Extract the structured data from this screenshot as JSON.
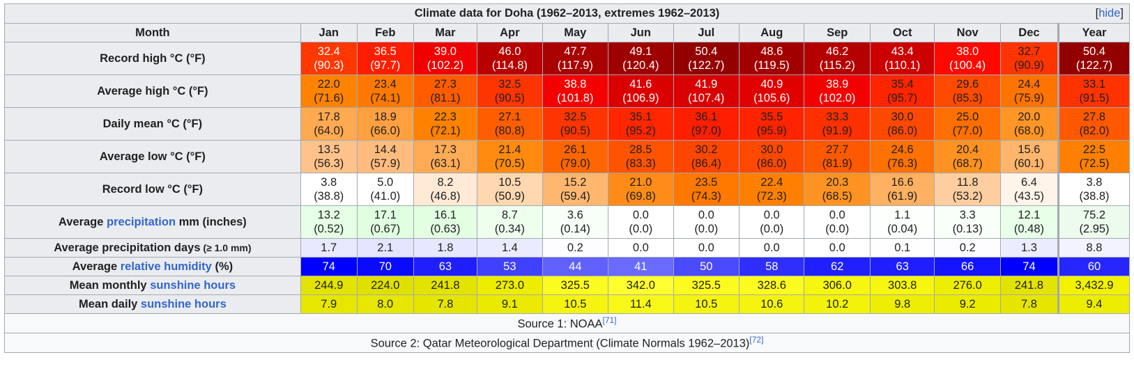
{
  "title": "Climate data for Doha (1962–2013, extremes 1962–2013)",
  "hide_label": "hide",
  "header": {
    "month_label": "Month",
    "months": [
      "Jan",
      "Feb",
      "Mar",
      "Apr",
      "May",
      "Jun",
      "Jul",
      "Aug",
      "Sep",
      "Oct",
      "Nov",
      "Dec"
    ],
    "year_label": "Year"
  },
  "rows": [
    {
      "label": "Record high °C (°F)",
      "link": null,
      "cells": [
        {
          "v": "32.4",
          "s": "(90.3)",
          "bg": "#ff3700",
          "fg": "#ffffff"
        },
        {
          "v": "36.5",
          "s": "(97.7)",
          "bg": "#ff1d00",
          "fg": "#ffffff"
        },
        {
          "v": "39.0",
          "s": "(102.2)",
          "bg": "#f00000",
          "fg": "#ffffff"
        },
        {
          "v": "46.0",
          "s": "(114.8)",
          "bg": "#b80000",
          "fg": "#ffffff"
        },
        {
          "v": "47.7",
          "s": "(117.9)",
          "bg": "#a90000",
          "fg": "#ffffff"
        },
        {
          "v": "49.1",
          "s": "(120.4)",
          "bg": "#9e0000",
          "fg": "#ffffff"
        },
        {
          "v": "50.4",
          "s": "(122.7)",
          "bg": "#930000",
          "fg": "#ffffff"
        },
        {
          "v": "48.6",
          "s": "(119.5)",
          "bg": "#a20000",
          "fg": "#ffffff"
        },
        {
          "v": "46.2",
          "s": "(115.2)",
          "bg": "#b50000",
          "fg": "#ffffff"
        },
        {
          "v": "43.4",
          "s": "(110.1)",
          "bg": "#cc0000",
          "fg": "#ffffff"
        },
        {
          "v": "38.0",
          "s": "(100.4)",
          "bg": "#ff0800",
          "fg": "#ffffff"
        },
        {
          "v": "32.7",
          "s": "(90.9)",
          "bg": "#ff3400",
          "fg": "#202122"
        }
      ],
      "year": {
        "v": "50.4",
        "s": "(122.7)",
        "bg": "#930000",
        "fg": "#ffffff"
      }
    },
    {
      "label": "Average high °C (°F)",
      "link": null,
      "cells": [
        {
          "v": "22.0",
          "s": "(71.6)",
          "bg": "#ff8300",
          "fg": "#202122"
        },
        {
          "v": "23.4",
          "s": "(74.1)",
          "bg": "#ff7900",
          "fg": "#202122"
        },
        {
          "v": "27.3",
          "s": "(81.1)",
          "bg": "#ff5c00",
          "fg": "#202122"
        },
        {
          "v": "32.5",
          "s": "(90.5)",
          "bg": "#ff3500",
          "fg": "#202122"
        },
        {
          "v": "38.8",
          "s": "(101.8)",
          "bg": "#f40000",
          "fg": "#ffffff"
        },
        {
          "v": "41.6",
          "s": "(106.9)",
          "bg": "#db0000",
          "fg": "#ffffff"
        },
        {
          "v": "41.9",
          "s": "(107.4)",
          "bg": "#d80000",
          "fg": "#ffffff"
        },
        {
          "v": "40.9",
          "s": "(105.6)",
          "bg": "#e10000",
          "fg": "#ffffff"
        },
        {
          "v": "38.9",
          "s": "(102.0)",
          "bg": "#f30000",
          "fg": "#ffffff"
        },
        {
          "v": "35.4",
          "s": "(95.7)",
          "bg": "#ff2500",
          "fg": "#202122"
        },
        {
          "v": "29.6",
          "s": "(85.3)",
          "bg": "#ff4a00",
          "fg": "#202122"
        },
        {
          "v": "24.4",
          "s": "(75.9)",
          "bg": "#ff7300",
          "fg": "#202122"
        }
      ],
      "year": {
        "v": "33.1",
        "s": "(91.5)",
        "bg": "#ff3200",
        "fg": "#202122"
      }
    },
    {
      "label": "Daily mean °C (°F)",
      "link": null,
      "cells": [
        {
          "v": "17.8",
          "s": "(64.0)",
          "bg": "#ffa950",
          "fg": "#202122"
        },
        {
          "v": "18.9",
          "s": "(66.0)",
          "bg": "#ffa040",
          "fg": "#202122"
        },
        {
          "v": "22.3",
          "s": "(72.1)",
          "bg": "#ff8100",
          "fg": "#202122"
        },
        {
          "v": "27.1",
          "s": "(80.8)",
          "bg": "#ff5d00",
          "fg": "#202122"
        },
        {
          "v": "32.5",
          "s": "(90.5)",
          "bg": "#ff3500",
          "fg": "#202122"
        },
        {
          "v": "35.1",
          "s": "(95.2)",
          "bg": "#ff2600",
          "fg": "#202122"
        },
        {
          "v": "36.1",
          "s": "(97.0)",
          "bg": "#ff1e00",
          "fg": "#202122"
        },
        {
          "v": "35.5",
          "s": "(95.9)",
          "bg": "#ff2300",
          "fg": "#202122"
        },
        {
          "v": "33.3",
          "s": "(91.9)",
          "bg": "#ff3000",
          "fg": "#202122"
        },
        {
          "v": "30.0",
          "s": "(86.0)",
          "bg": "#ff4800",
          "fg": "#202122"
        },
        {
          "v": "25.0",
          "s": "(77.0)",
          "bg": "#ff6e00",
          "fg": "#202122"
        },
        {
          "v": "20.0",
          "s": "(68.0)",
          "bg": "#ff9525",
          "fg": "#202122"
        }
      ],
      "year": {
        "v": "27.8",
        "s": "(82.0)",
        "bg": "#ff5800",
        "fg": "#202122"
      }
    },
    {
      "label": "Average low °C (°F)",
      "link": null,
      "cells": [
        {
          "v": "13.5",
          "s": "(56.3)",
          "bg": "#ffc28a",
          "fg": "#202122"
        },
        {
          "v": "14.4",
          "s": "(57.9)",
          "bg": "#ffbc7e",
          "fg": "#202122"
        },
        {
          "v": "17.3",
          "s": "(63.1)",
          "bg": "#ffab55",
          "fg": "#202122"
        },
        {
          "v": "21.4",
          "s": "(70.5)",
          "bg": "#ff8a10",
          "fg": "#202122"
        },
        {
          "v": "26.1",
          "s": "(79.0)",
          "bg": "#ff6500",
          "fg": "#202122"
        },
        {
          "v": "28.5",
          "s": "(83.3)",
          "bg": "#ff5300",
          "fg": "#202122"
        },
        {
          "v": "30.2",
          "s": "(86.4)",
          "bg": "#ff4600",
          "fg": "#202122"
        },
        {
          "v": "30.0",
          "s": "(86.0)",
          "bg": "#ff4800",
          "fg": "#202122"
        },
        {
          "v": "27.7",
          "s": "(81.9)",
          "bg": "#ff5900",
          "fg": "#202122"
        },
        {
          "v": "24.6",
          "s": "(76.3)",
          "bg": "#ff7100",
          "fg": "#202122"
        },
        {
          "v": "20.4",
          "s": "(68.7)",
          "bg": "#ff9220",
          "fg": "#202122"
        },
        {
          "v": "15.6",
          "s": "(60.1)",
          "bg": "#ffb56c",
          "fg": "#202122"
        }
      ],
      "year": {
        "v": "22.5",
        "s": "(72.5)",
        "bg": "#ff8000",
        "fg": "#202122"
      }
    },
    {
      "label": "Record low °C (°F)",
      "link": null,
      "cells": [
        {
          "v": "3.8",
          "s": "(38.8)",
          "bg": "#ffffff",
          "fg": "#202122"
        },
        {
          "v": "5.0",
          "s": "(41.0)",
          "bg": "#ffffff",
          "fg": "#202122"
        },
        {
          "v": "8.2",
          "s": "(46.8)",
          "bg": "#ffead6",
          "fg": "#202122"
        },
        {
          "v": "10.5",
          "s": "(50.9)",
          "bg": "#ffd7b0",
          "fg": "#202122"
        },
        {
          "v": "15.2",
          "s": "(59.4)",
          "bg": "#ffb770",
          "fg": "#202122"
        },
        {
          "v": "21.0",
          "s": "(69.8)",
          "bg": "#ff8c18",
          "fg": "#202122"
        },
        {
          "v": "23.5",
          "s": "(74.3)",
          "bg": "#ff7800",
          "fg": "#202122"
        },
        {
          "v": "22.4",
          "s": "(72.3)",
          "bg": "#ff8000",
          "fg": "#202122"
        },
        {
          "v": "20.3",
          "s": "(68.5)",
          "bg": "#ff9322",
          "fg": "#202122"
        },
        {
          "v": "16.6",
          "s": "(61.9)",
          "bg": "#ffb060",
          "fg": "#202122"
        },
        {
          "v": "11.8",
          "s": "(53.2)",
          "bg": "#ffcea0",
          "fg": "#202122"
        },
        {
          "v": "6.4",
          "s": "(43.5)",
          "bg": "#fff4ea",
          "fg": "#202122"
        }
      ],
      "year": {
        "v": "3.8",
        "s": "(38.8)",
        "bg": "#ffffff",
        "fg": "#202122"
      }
    },
    {
      "label_pre": "Average ",
      "label_link": "precipitation",
      "label_post": " mm (inches)",
      "link": true,
      "cells": [
        {
          "v": "13.2",
          "s": "(0.52)",
          "bg": "#e6ffe6",
          "fg": "#202122"
        },
        {
          "v": "17.1",
          "s": "(0.67)",
          "bg": "#e0ffe0",
          "fg": "#202122"
        },
        {
          "v": "16.1",
          "s": "(0.63)",
          "bg": "#e2ffe2",
          "fg": "#202122"
        },
        {
          "v": "8.7",
          "s": "(0.34)",
          "bg": "#eeffee",
          "fg": "#202122"
        },
        {
          "v": "3.6",
          "s": "(0.14)",
          "bg": "#f8fff8",
          "fg": "#202122"
        },
        {
          "v": "0.0",
          "s": "(0.0)",
          "bg": "#ffffff",
          "fg": "#202122"
        },
        {
          "v": "0.0",
          "s": "(0.0)",
          "bg": "#ffffff",
          "fg": "#202122"
        },
        {
          "v": "0.0",
          "s": "(0.0)",
          "bg": "#ffffff",
          "fg": "#202122"
        },
        {
          "v": "0.0",
          "s": "(0.0)",
          "bg": "#ffffff",
          "fg": "#202122"
        },
        {
          "v": "1.1",
          "s": "(0.04)",
          "bg": "#fdfffd",
          "fg": "#202122"
        },
        {
          "v": "3.3",
          "s": "(0.13)",
          "bg": "#f9fff9",
          "fg": "#202122"
        },
        {
          "v": "12.1",
          "s": "(0.48)",
          "bg": "#e8ffe8",
          "fg": "#202122"
        }
      ],
      "year": {
        "v": "75.2",
        "s": "(2.95)",
        "bg": "#edfbed",
        "fg": "#202122"
      }
    },
    {
      "label": "Average precipitation days",
      "label_small": " (≥ 1.0 mm)",
      "link": null,
      "short": true,
      "cells": [
        {
          "v": "1.7",
          "bg": "#e8e8ff",
          "fg": "#202122"
        },
        {
          "v": "2.1",
          "bg": "#e4e4ff",
          "fg": "#202122"
        },
        {
          "v": "1.8",
          "bg": "#e7e7ff",
          "fg": "#202122"
        },
        {
          "v": "1.4",
          "bg": "#ebebff",
          "fg": "#202122"
        },
        {
          "v": "0.2",
          "bg": "#fdfdff",
          "fg": "#202122"
        },
        {
          "v": "0.0",
          "bg": "#ffffff",
          "fg": "#202122"
        },
        {
          "v": "0.0",
          "bg": "#ffffff",
          "fg": "#202122"
        },
        {
          "v": "0.0",
          "bg": "#ffffff",
          "fg": "#202122"
        },
        {
          "v": "0.0",
          "bg": "#ffffff",
          "fg": "#202122"
        },
        {
          "v": "0.1",
          "bg": "#fefeff",
          "fg": "#202122"
        },
        {
          "v": "0.2",
          "bg": "#fdfdff",
          "fg": "#202122"
        },
        {
          "v": "1.3",
          "bg": "#ececff",
          "fg": "#202122"
        }
      ],
      "year": {
        "v": "8.8",
        "bg": "#f3f3ff",
        "fg": "#202122"
      }
    },
    {
      "label_pre": "Average ",
      "label_link": "relative humidity",
      "label_post": " (%)",
      "link": true,
      "short": true,
      "cells": [
        {
          "v": "74",
          "bg": "#0000ff",
          "fg": "#ffffff"
        },
        {
          "v": "70",
          "bg": "#0a0aff",
          "fg": "#ffffff"
        },
        {
          "v": "63",
          "bg": "#1e1eff",
          "fg": "#ffffff"
        },
        {
          "v": "53",
          "bg": "#4040ff",
          "fg": "#ffffff"
        },
        {
          "v": "44",
          "bg": "#6060ff",
          "fg": "#ffffff"
        },
        {
          "v": "41",
          "bg": "#6a6aff",
          "fg": "#ffffff"
        },
        {
          "v": "50",
          "bg": "#4a4aff",
          "fg": "#ffffff"
        },
        {
          "v": "58",
          "bg": "#2e2eff",
          "fg": "#ffffff"
        },
        {
          "v": "62",
          "bg": "#2020ff",
          "fg": "#ffffff"
        },
        {
          "v": "63",
          "bg": "#1e1eff",
          "fg": "#ffffff"
        },
        {
          "v": "66",
          "bg": "#1414ff",
          "fg": "#ffffff"
        },
        {
          "v": "74",
          "bg": "#0000ff",
          "fg": "#ffffff"
        }
      ],
      "year": {
        "v": "60",
        "bg": "#2626ff",
        "fg": "#ffffff"
      }
    },
    {
      "label_pre": "Mean monthly ",
      "label_link": "sunshine hours",
      "label_post": "",
      "link": true,
      "short": true,
      "cells": [
        {
          "v": "244.9",
          "bg": "#e3e300",
          "fg": "#202122"
        },
        {
          "v": "224.0",
          "bg": "#e0e000",
          "fg": "#202122"
        },
        {
          "v": "241.8",
          "bg": "#e3e300",
          "fg": "#202122"
        },
        {
          "v": "273.0",
          "bg": "#eded00",
          "fg": "#202122"
        },
        {
          "v": "325.5",
          "bg": "#fbfb20",
          "fg": "#202122"
        },
        {
          "v": "342.0",
          "bg": "#ffff30",
          "fg": "#202122"
        },
        {
          "v": "325.5",
          "bg": "#fbfb20",
          "fg": "#202122"
        },
        {
          "v": "328.6",
          "bg": "#fbfb20",
          "fg": "#202122"
        },
        {
          "v": "306.0",
          "bg": "#f6f610",
          "fg": "#202122"
        },
        {
          "v": "303.8",
          "bg": "#f6f610",
          "fg": "#202122"
        },
        {
          "v": "276.0",
          "bg": "#eeee00",
          "fg": "#202122"
        },
        {
          "v": "241.8",
          "bg": "#e3e300",
          "fg": "#202122"
        }
      ],
      "year": {
        "v": "3,432.9",
        "bg": "#f2f200",
        "fg": "#202122"
      }
    },
    {
      "label_pre": "Mean daily ",
      "label_link": "sunshine hours",
      "label_post": "",
      "link": true,
      "short": true,
      "cells": [
        {
          "v": "7.9",
          "bg": "#e6e600",
          "fg": "#202122"
        },
        {
          "v": "8.0",
          "bg": "#e6e600",
          "fg": "#202122"
        },
        {
          "v": "7.8",
          "bg": "#e5e500",
          "fg": "#202122"
        },
        {
          "v": "9.1",
          "bg": "#eaea00",
          "fg": "#202122"
        },
        {
          "v": "10.5",
          "bg": "#f4f410",
          "fg": "#202122"
        },
        {
          "v": "11.4",
          "bg": "#f8f818",
          "fg": "#202122"
        },
        {
          "v": "10.5",
          "bg": "#f4f410",
          "fg": "#202122"
        },
        {
          "v": "10.6",
          "bg": "#f4f410",
          "fg": "#202122"
        },
        {
          "v": "10.2",
          "bg": "#f2f20a",
          "fg": "#202122"
        },
        {
          "v": "9.8",
          "bg": "#eeee04",
          "fg": "#202122"
        },
        {
          "v": "9.2",
          "bg": "#ebeb00",
          "fg": "#202122"
        },
        {
          "v": "7.8",
          "bg": "#e5e500",
          "fg": "#202122"
        }
      ],
      "year": {
        "v": "9.4",
        "bg": "#eded02",
        "fg": "#202122"
      }
    }
  ],
  "sources": [
    {
      "text": "Source 1: NOAA",
      "ref": "[71]"
    },
    {
      "text": "Source 2: Qatar Meteorological Department (Climate Normals 1962–2013)",
      "ref": "[72]"
    }
  ]
}
